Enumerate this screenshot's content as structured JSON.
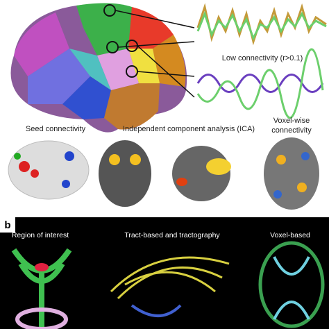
{
  "panel_a": {
    "low_connectivity": "Low connectivity (r>0.1)",
    "methods": [
      "Seed connectivity",
      "Independent component analysis (ICA)"
    ],
    "voxel_wise": [
      "Voxel-wise",
      "connectivity"
    ]
  },
  "panel_b": {
    "letter": "b",
    "methods": [
      "Region of interest",
      "Tract-based and tractography",
      "Voxel-based"
    ]
  }
}
